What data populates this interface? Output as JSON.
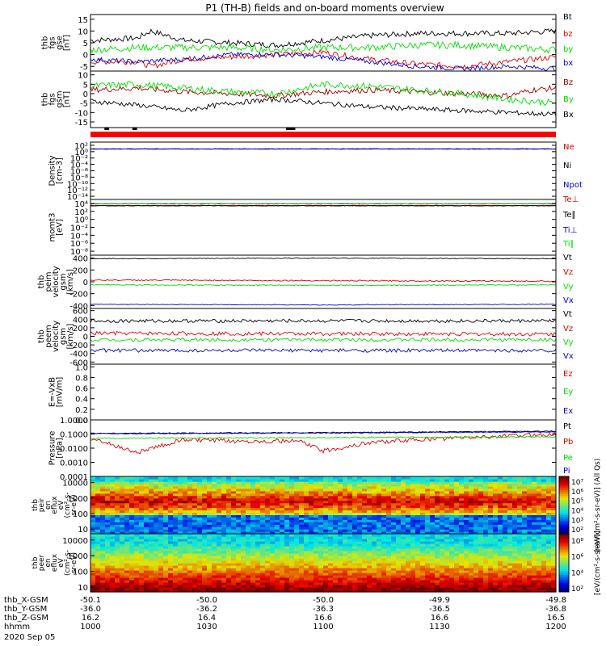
{
  "title": "P1 (TH-B) fields and on-board moments overview",
  "colors": {
    "black": "#000000",
    "red": "#e00000",
    "green": "#00e000",
    "blue": "#0000e0",
    "darkred": "#a00000"
  },
  "flag_bar": {
    "label": "",
    "colors": [
      "#ff0000",
      "#000000"
    ]
  },
  "panels": [
    {
      "id": "fgs-gse",
      "ylabel": [
        "thb",
        "fgs",
        "gse",
        "[nT]"
      ],
      "ticks": [
        {
          "v": 15,
          "t": "15"
        },
        {
          "v": 10,
          "t": "10"
        },
        {
          "v": 5,
          "t": "5"
        },
        {
          "v": 0,
          "t": "0"
        },
        {
          "v": -5,
          "t": "-5"
        }
      ],
      "ymin": -7,
      "ymax": 17,
      "log": false,
      "series": [
        {
          "name": "Bt",
          "color": "#000000",
          "pts": [
            [
              0,
              6
            ],
            [
              0.1,
              7
            ],
            [
              0.13,
              10
            ],
            [
              0.2,
              6
            ],
            [
              0.3,
              5
            ],
            [
              0.4,
              4
            ],
            [
              0.5,
              6
            ],
            [
              0.6,
              8
            ],
            [
              0.7,
              9
            ],
            [
              0.8,
              9
            ],
            [
              0.9,
              9
            ],
            [
              1,
              10
            ]
          ],
          "noise": 1.2
        },
        {
          "name": "bz",
          "color": "#e00000",
          "pts": [
            [
              0,
              -3
            ],
            [
              0.1,
              -3
            ],
            [
              0.13,
              -5
            ],
            [
              0.2,
              -2
            ],
            [
              0.3,
              -1
            ],
            [
              0.4,
              0
            ],
            [
              0.5,
              1
            ],
            [
              0.6,
              -2
            ],
            [
              0.7,
              -4
            ],
            [
              0.8,
              -5
            ],
            [
              0.9,
              -3
            ],
            [
              1,
              -1
            ]
          ],
          "noise": 1.2
        },
        {
          "name": "by",
          "color": "#00e000",
          "pts": [
            [
              0,
              2
            ],
            [
              0.1,
              3
            ],
            [
              0.2,
              3
            ],
            [
              0.3,
              3
            ],
            [
              0.4,
              2
            ],
            [
              0.5,
              3
            ],
            [
              0.6,
              3
            ],
            [
              0.7,
              4
            ],
            [
              0.8,
              4
            ],
            [
              0.9,
              3
            ],
            [
              1,
              2
            ]
          ],
          "noise": 1.5
        },
        {
          "name": "bx",
          "color": "#0000e0",
          "pts": [
            [
              0,
              -2
            ],
            [
              0.1,
              -3
            ],
            [
              0.2,
              -2
            ],
            [
              0.3,
              0
            ],
            [
              0.4,
              0
            ],
            [
              0.5,
              -1
            ],
            [
              0.6,
              -3
            ],
            [
              0.7,
              -5
            ],
            [
              0.8,
              -6
            ],
            [
              0.9,
              -5
            ],
            [
              1,
              -6
            ]
          ],
          "noise": 1.0
        }
      ]
    },
    {
      "id": "fgs-gsm",
      "ylabel": [
        "thb",
        "fgs",
        "gsm",
        "[nT]"
      ],
      "ticks": [
        {
          "v": 10,
          "t": "10"
        },
        {
          "v": 5,
          "t": "5"
        },
        {
          "v": 0,
          "t": "0"
        },
        {
          "v": -5,
          "t": "-5"
        },
        {
          "v": -10,
          "t": "-10"
        },
        {
          "v": -15,
          "t": "-15"
        }
      ],
      "ymin": -18,
      "ymax": 12,
      "log": false,
      "series": [
        {
          "name": "Bz",
          "color": "#a00000",
          "pts": [
            [
              0,
              2
            ],
            [
              0.1,
              3
            ],
            [
              0.2,
              1
            ],
            [
              0.3,
              0
            ],
            [
              0.4,
              -1
            ],
            [
              0.5,
              1
            ],
            [
              0.6,
              2
            ],
            [
              0.7,
              1
            ],
            [
              0.8,
              0
            ],
            [
              0.9,
              -1
            ],
            [
              0.95,
              2
            ],
            [
              1,
              3
            ]
          ],
          "noise": 1.5
        },
        {
          "name": "By",
          "color": "#00e000",
          "pts": [
            [
              0,
              4
            ],
            [
              0.1,
              5
            ],
            [
              0.2,
              3
            ],
            [
              0.3,
              1
            ],
            [
              0.4,
              0
            ],
            [
              0.5,
              5
            ],
            [
              0.6,
              4
            ],
            [
              0.7,
              2
            ],
            [
              0.8,
              0
            ],
            [
              0.9,
              -3
            ],
            [
              1,
              -5
            ]
          ],
          "noise": 1.8
        },
        {
          "name": "Bx",
          "color": "#000000",
          "pts": [
            [
              0,
              -4
            ],
            [
              0.1,
              -6
            ],
            [
              0.2,
              -9
            ],
            [
              0.3,
              -5
            ],
            [
              0.4,
              -3
            ],
            [
              0.5,
              -5
            ],
            [
              0.6,
              -7
            ],
            [
              0.7,
              -8
            ],
            [
              0.8,
              -9
            ],
            [
              0.9,
              -10
            ],
            [
              1,
              -11
            ]
          ],
          "noise": 1.3
        }
      ]
    },
    {
      "id": "density",
      "ylabel": [
        "Density",
        "[cm-3]"
      ],
      "ticks": [
        {
          "v": 2,
          "t": "10²"
        },
        {
          "v": 0,
          "t": "10⁰"
        },
        {
          "v": -2,
          "t": "10⁻²"
        },
        {
          "v": -4,
          "t": "10⁻⁴"
        },
        {
          "v": -6,
          "t": "10⁻⁶"
        },
        {
          "v": -8,
          "t": "10⁻⁸"
        },
        {
          "v": -10,
          "t": "10⁻¹⁰"
        },
        {
          "v": -12,
          "t": "10⁻¹²"
        },
        {
          "v": -14,
          "t": "10⁻¹⁴"
        }
      ],
      "ymin": -15,
      "ymax": 3,
      "log": true,
      "series": [
        {
          "name": "Ne",
          "color": "#e00000",
          "pts": [
            [
              0,
              0.8
            ],
            [
              1,
              0.8
            ]
          ],
          "noise": 0.05
        },
        {
          "name": "Ni",
          "color": "#000000",
          "pts": [
            [
              0,
              0.85
            ],
            [
              1,
              0.85
            ]
          ],
          "noise": 0.05
        },
        {
          "name": "Npot",
          "color": "#0000e0",
          "pts": [
            [
              0,
              0.9
            ],
            [
              1,
              0.9
            ]
          ],
          "noise": 0.05
        }
      ]
    },
    {
      "id": "mom-t3",
      "ylabel": [
        "momt3",
        "[eV]"
      ],
      "ticks": [
        {
          "v": 4,
          "t": "10⁴"
        },
        {
          "v": 2,
          "t": "10²"
        },
        {
          "v": 0,
          "t": "10⁰"
        },
        {
          "v": -2,
          "t": "10⁻²"
        },
        {
          "v": -4,
          "t": "10⁻⁴"
        },
        {
          "v": -6,
          "t": "10⁻⁶"
        },
        {
          "v": -8,
          "t": "10⁻⁸"
        }
      ],
      "ymin": -9,
      "ymax": 5,
      "log": true,
      "series": [
        {
          "name": "Te⊥",
          "color": "#e00000",
          "pts": [
            [
              0,
              3.5
            ],
            [
              1,
              3.5
            ]
          ],
          "noise": 0.05
        },
        {
          "name": "Te∥",
          "color": "#000000",
          "pts": [
            [
              0,
              3.4
            ],
            [
              1,
              3.4
            ]
          ],
          "noise": 0.05
        },
        {
          "name": "Ti⊥",
          "color": "#0000e0",
          "pts": [
            [
              0,
              3.9
            ],
            [
              1,
              3.9
            ]
          ],
          "noise": 0.05
        },
        {
          "name": "Ti∥",
          "color": "#00e000",
          "pts": [
            [
              0,
              3.95
            ],
            [
              1,
              3.95
            ]
          ],
          "noise": 0.05
        }
      ]
    },
    {
      "id": "peim-velocity",
      "ylabel": [
        "thb",
        "peim",
        "velocity",
        "gsm",
        "[km/s]"
      ],
      "ticks": [
        {
          "v": 400,
          "t": "400"
        },
        {
          "v": 200,
          "t": "200"
        },
        {
          "v": 0,
          "t": "0"
        },
        {
          "v": -200,
          "t": "-200"
        },
        {
          "v": -400,
          "t": "-400"
        }
      ],
      "ymin": -450,
      "ymax": 450,
      "log": false,
      "series": [
        {
          "name": "Vt",
          "color": "#000000",
          "pts": [
            [
              0,
              390
            ],
            [
              0.5,
              400
            ],
            [
              1,
              390
            ]
          ],
          "noise": 6
        },
        {
          "name": "Vz",
          "color": "#e00000",
          "pts": [
            [
              0,
              30
            ],
            [
              0.5,
              20
            ],
            [
              1,
              10
            ]
          ],
          "noise": 10
        },
        {
          "name": "Vy",
          "color": "#00e000",
          "pts": [
            [
              0,
              -50
            ],
            [
              0.5,
              -60
            ],
            [
              1,
              -50
            ]
          ],
          "noise": 8
        },
        {
          "name": "Vx",
          "color": "#0000e0",
          "pts": [
            [
              0,
              -380
            ],
            [
              0.5,
              -390
            ],
            [
              1,
              -380
            ]
          ],
          "noise": 6
        }
      ]
    },
    {
      "id": "peem-velocity",
      "ylabel": [
        "thb",
        "peem",
        "velocity",
        "gsm",
        "[km/s]"
      ],
      "ticks": [
        {
          "v": 600,
          "t": "600"
        },
        {
          "v": 400,
          "t": "400"
        },
        {
          "v": 200,
          "t": "200"
        },
        {
          "v": 0,
          "t": "0"
        },
        {
          "v": -200,
          "t": "-200"
        },
        {
          "v": -400,
          "t": "-400"
        },
        {
          "v": -600,
          "t": "-600"
        }
      ],
      "ymin": -650,
      "ymax": 650,
      "log": false,
      "series": [
        {
          "name": "Vt",
          "color": "#000000",
          "pts": [
            [
              0,
              360
            ],
            [
              1,
              360
            ]
          ],
          "noise": 40
        },
        {
          "name": "Vz",
          "color": "#e00000",
          "pts": [
            [
              0,
              70
            ],
            [
              1,
              50
            ]
          ],
          "noise": 45
        },
        {
          "name": "Vy",
          "color": "#00e000",
          "pts": [
            [
              0,
              -80
            ],
            [
              1,
              -80
            ]
          ],
          "noise": 40
        },
        {
          "name": "Vx",
          "color": "#0000e0",
          "pts": [
            [
              0,
              -330
            ],
            [
              1,
              -330
            ]
          ],
          "noise": 40
        }
      ]
    },
    {
      "id": "e-field",
      "ylabel": [
        "E=-VxB",
        "[mV/m]"
      ],
      "ticks": [
        {
          "v": 1.0,
          "t": "1.0"
        },
        {
          "v": 0.8,
          "t": "0.8"
        },
        {
          "v": 0.6,
          "t": "0.6"
        },
        {
          "v": 0.4,
          "t": "0.4"
        },
        {
          "v": 0.2,
          "t": "0.2"
        },
        {
          "v": 0.0,
          "t": "0.0"
        }
      ],
      "ymin": 0,
      "ymax": 1.05,
      "log": false,
      "series": [
        {
          "name": "Ez",
          "color": "#e00000",
          "pts": [],
          "noise": 0
        },
        {
          "name": "Ey",
          "color": "#00e000",
          "pts": [],
          "noise": 0
        },
        {
          "name": "Ex",
          "color": "#0000e0",
          "pts": [],
          "noise": 0
        }
      ]
    },
    {
      "id": "pressure",
      "ylabel": [
        "Pressure",
        "[nPa]"
      ],
      "ticks": [
        {
          "v": 0,
          "t": "1.0000"
        },
        {
          "v": -1,
          "t": "0.1000"
        },
        {
          "v": -2,
          "t": "0.0100"
        },
        {
          "v": -3,
          "t": "0.0010"
        },
        {
          "v": -4,
          "t": "0.0001"
        }
      ],
      "ymin": -4,
      "ymax": 0,
      "log": true,
      "series": [
        {
          "name": "Pt",
          "color": "#000000",
          "pts": [
            [
              0,
              -0.95
            ],
            [
              0.5,
              -0.9
            ],
            [
              1,
              -0.8
            ]
          ],
          "noise": 0.03
        },
        {
          "name": "Pb",
          "color": "#e00000",
          "pts": [
            [
              0,
              -1.3
            ],
            [
              0.1,
              -2.3
            ],
            [
              0.2,
              -1.4
            ],
            [
              0.3,
              -1.5
            ],
            [
              0.45,
              -1.5
            ],
            [
              0.5,
              -2.2
            ],
            [
              0.6,
              -1.6
            ],
            [
              0.7,
              -1.4
            ],
            [
              0.85,
              -1.2
            ],
            [
              1,
              -1.0
            ]
          ],
          "noise": 0.15
        },
        {
          "name": "Pe",
          "color": "#00e000",
          "pts": [
            [
              0,
              -1.3
            ],
            [
              0.5,
              -1.25
            ],
            [
              1,
              -1.2
            ]
          ],
          "noise": 0.04
        },
        {
          "name": "Pi",
          "color": "#0000e0",
          "pts": [
            [
              0,
              -0.98
            ],
            [
              0.5,
              -0.93
            ],
            [
              1,
              -0.85
            ]
          ],
          "noise": 0.03
        }
      ]
    }
  ],
  "spectrograms": [
    {
      "id": "peir",
      "ylabel": [
        "thb",
        "peir",
        "en",
        "eflux",
        "eV",
        "(cm²-s-",
        "sr-eV)"
      ],
      "ticks": [
        {
          "v": 4,
          "t": "10000"
        },
        {
          "v": 3,
          "t": "1000"
        },
        {
          "v": 2,
          "t": "100"
        },
        {
          "v": 1,
          "t": "10"
        }
      ]
    },
    {
      "id": "peer",
      "ylabel": [
        "thb",
        "peer",
        "en",
        "eflux",
        "eV",
        "(cm²-s-",
        "sr-eV)"
      ],
      "ticks": [
        {
          "v": 4,
          "t": "10000"
        },
        {
          "v": 3,
          "t": "1000"
        },
        {
          "v": 2,
          "t": "100"
        },
        {
          "v": 1,
          "t": "10"
        }
      ]
    }
  ],
  "colorbars": [
    {
      "ticks": [
        {
          "v": 7,
          "t": "10⁷"
        },
        {
          "v": 6,
          "t": "10⁶"
        },
        {
          "v": 5,
          "t": "10⁵"
        },
        {
          "v": 4,
          "t": "10⁴"
        },
        {
          "v": 3,
          "t": "10³"
        },
        {
          "v": 2,
          "t": "10²"
        }
      ],
      "label": "[eV/(cm²-s-sr-eV)] (All Qs)"
    },
    {
      "ticks": [
        {
          "v": 8,
          "t": "10⁸"
        },
        {
          "v": 6,
          "t": "10⁶"
        },
        {
          "v": 4,
          "t": "10⁴"
        },
        {
          "v": 2,
          "t": "10²"
        }
      ],
      "label": "[eV/(cm²-s-sr-eV)]"
    }
  ],
  "xaxis": {
    "rows": [
      {
        "label": "thb_X-GSM",
        "values": [
          "-50.1",
          "-50.0",
          "-50.0",
          "-49.9",
          "-49.8"
        ]
      },
      {
        "label": "thb_Y-GSM",
        "values": [
          "-36.0",
          "-36.2",
          "-36.3",
          "-36.5",
          "-36.8"
        ]
      },
      {
        "label": "thb_Z-GSM",
        "values": [
          "16.2",
          "16.4",
          "16.6",
          "16.6",
          "16.5"
        ]
      },
      {
        "label": "hhmm",
        "values": [
          "1000",
          "1030",
          "1100",
          "1130",
          "1200"
        ]
      }
    ],
    "date": "2020 Sep 05"
  }
}
